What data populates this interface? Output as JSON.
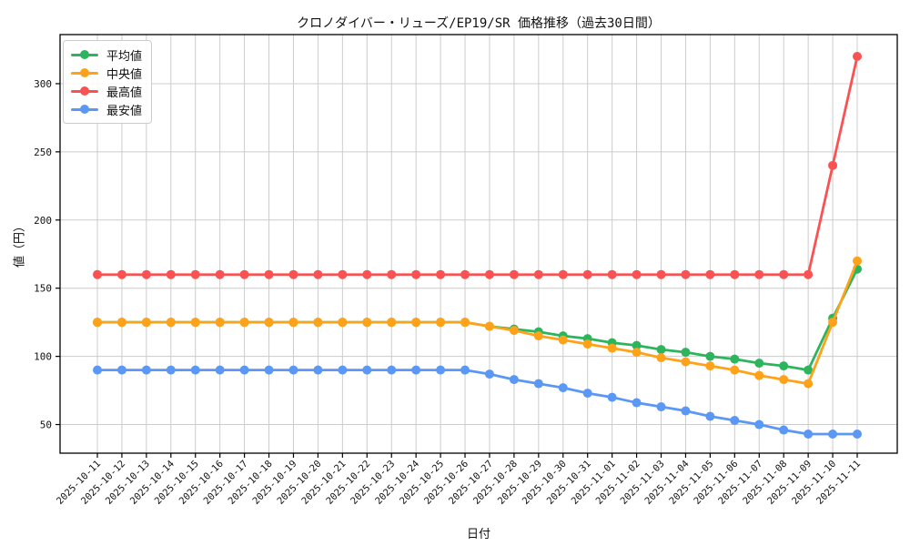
{
  "title": "クロノダイバー・リューズ/EP19/SR 価格推移（過去30日間）",
  "chart_data": {
    "type": "line",
    "xlabel": "日付",
    "ylabel": "値（円）",
    "x": [
      "2025-10-11",
      "2025-10-12",
      "2025-10-13",
      "2025-10-14",
      "2025-10-15",
      "2025-10-16",
      "2025-10-17",
      "2025-10-18",
      "2025-10-19",
      "2025-10-20",
      "2025-10-21",
      "2025-10-22",
      "2025-10-23",
      "2025-10-24",
      "2025-10-25",
      "2025-10-26",
      "2025-10-27",
      "2025-10-28",
      "2025-10-29",
      "2025-10-30",
      "2025-10-31",
      "2025-11-01",
      "2025-11-02",
      "2025-11-03",
      "2025-11-04",
      "2025-11-05",
      "2025-11-06",
      "2025-11-07",
      "2025-11-08",
      "2025-11-09",
      "2025-11-10",
      "2025-11-11"
    ],
    "series": [
      {
        "key": "average",
        "name": "平均値",
        "color": "#2db55d",
        "values": [
          125,
          125,
          125,
          125,
          125,
          125,
          125,
          125,
          125,
          125,
          125,
          125,
          125,
          125,
          125,
          125,
          122,
          120,
          118,
          115,
          113,
          110,
          108,
          105,
          103,
          100,
          98,
          95,
          93,
          90,
          128,
          164
        ]
      },
      {
        "key": "median",
        "name": "中央値",
        "color": "#ffa219",
        "values": [
          125,
          125,
          125,
          125,
          125,
          125,
          125,
          125,
          125,
          125,
          125,
          125,
          125,
          125,
          125,
          125,
          122,
          119,
          115,
          112,
          109,
          106,
          103,
          99,
          96,
          93,
          90,
          86,
          83,
          80,
          125,
          170
        ]
      },
      {
        "key": "max",
        "name": "最高値",
        "color": "#fa5252",
        "values": [
          160,
          160,
          160,
          160,
          160,
          160,
          160,
          160,
          160,
          160,
          160,
          160,
          160,
          160,
          160,
          160,
          160,
          160,
          160,
          160,
          160,
          160,
          160,
          160,
          160,
          160,
          160,
          160,
          160,
          160,
          240,
          320
        ]
      },
      {
        "key": "min",
        "name": "最安値",
        "color": "#5b97f5",
        "values": [
          90,
          90,
          90,
          90,
          90,
          90,
          90,
          90,
          90,
          90,
          90,
          90,
          90,
          90,
          90,
          90,
          87,
          83,
          80,
          77,
          73,
          70,
          66,
          63,
          60,
          56,
          53,
          50,
          46,
          43,
          43,
          43
        ]
      }
    ],
    "yticks": [
      50,
      100,
      150,
      200,
      250,
      300
    ],
    "ylim": [
      29,
      336
    ],
    "grid": true,
    "grid_color": "#cccccc",
    "legend_position": "upper-left"
  }
}
